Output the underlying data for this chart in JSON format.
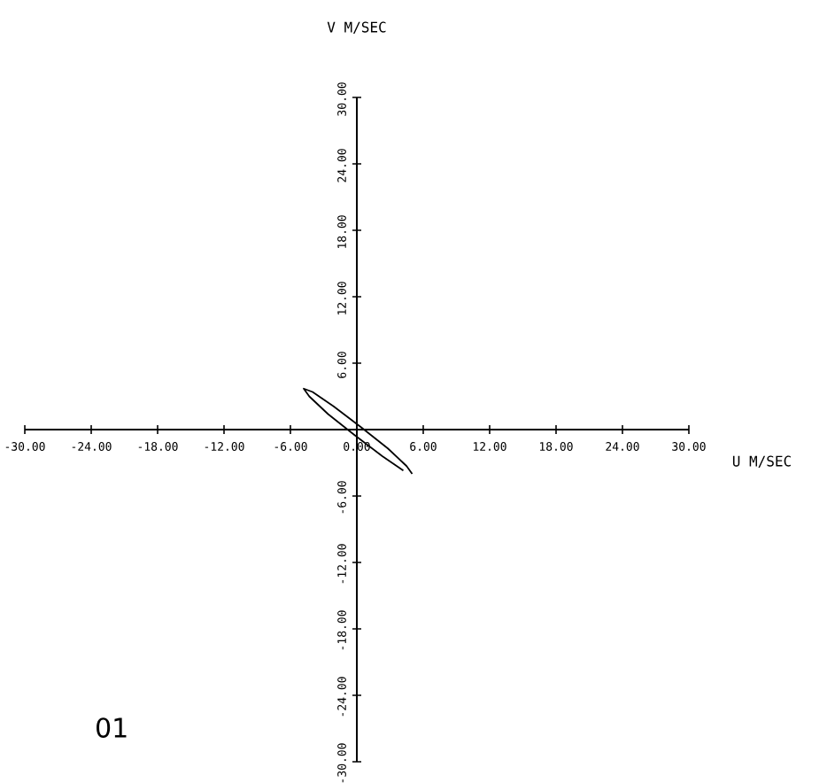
{
  "chart_data": {
    "type": "line",
    "xlabel": "U M/SEC",
    "ylabel": "V M/SEC",
    "annotations": [
      "01"
    ],
    "xlim": [
      -30,
      30
    ],
    "ylim": [
      -30,
      30
    ],
    "xticks": [
      {
        "value": -30,
        "label": "-30.00"
      },
      {
        "value": -24,
        "label": "-24.00"
      },
      {
        "value": -18,
        "label": "-18.00"
      },
      {
        "value": -12,
        "label": "-12.00"
      },
      {
        "value": -6,
        "label": "-6.00"
      },
      {
        "value": 0,
        "label": "0.00"
      },
      {
        "value": 6,
        "label": "6.00"
      },
      {
        "value": 12,
        "label": "12.00"
      },
      {
        "value": 18,
        "label": "18.00"
      },
      {
        "value": 24,
        "label": "24.00"
      },
      {
        "value": 30,
        "label": "30.00"
      }
    ],
    "yticks": [
      {
        "value": -30,
        "label": "-30.00"
      },
      {
        "value": -24,
        "label": "-24.00"
      },
      {
        "value": -18,
        "label": "-18.00"
      },
      {
        "value": -12,
        "label": "-12.00"
      },
      {
        "value": -6,
        "label": "-6.00"
      },
      {
        "value": 0,
        "label": null
      },
      {
        "value": 6,
        "label": "6.00"
      },
      {
        "value": 12,
        "label": "12.00"
      },
      {
        "value": 18,
        "label": "18.00"
      },
      {
        "value": 24,
        "label": "24.00"
      },
      {
        "value": 30,
        "label": "30.00"
      }
    ],
    "series": [
      {
        "color": "#000000",
        "x": [
          5.0,
          4.5,
          2.8,
          0.4,
          -2.1,
          -4.0,
          -4.8,
          -4.3,
          -2.6,
          -0.2,
          2.3,
          4.2
        ],
        "values": [
          -4.0,
          -3.3,
          -1.7,
          0.2,
          2.1,
          3.4,
          3.7,
          3.0,
          1.4,
          -0.5,
          -2.4,
          -3.7
        ]
      }
    ],
    "grid": false,
    "marker": "none",
    "line_style": "solid"
  }
}
